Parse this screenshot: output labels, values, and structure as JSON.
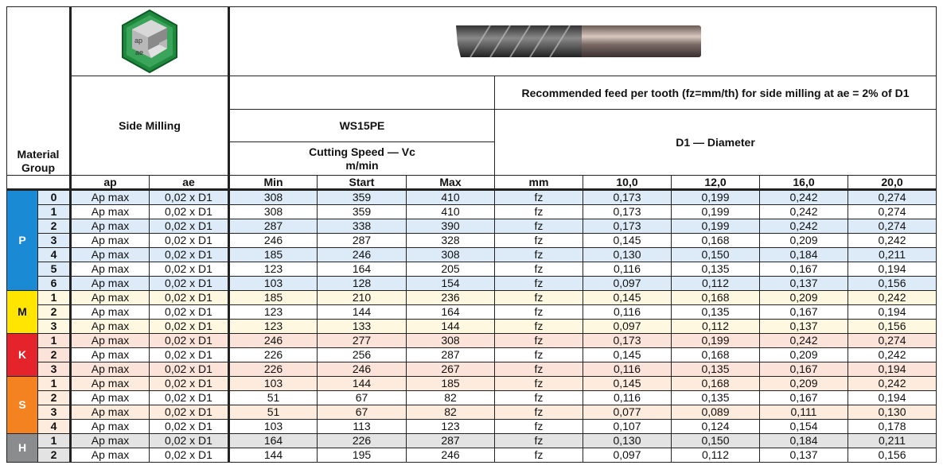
{
  "header": {
    "material_group": "Material Group",
    "operation": "Side Milling",
    "operation_icon_text": [
      "ap",
      "ae"
    ],
    "tool_name": "WS15PE",
    "cutting_speed": "Cutting Speed — Vc m/min",
    "feed_title": "Recommended feed per tooth (fz=mm/th) for side milling at ae = 2% of D1",
    "diameter_title": "D1 — Diameter",
    "columns": [
      "ap",
      "ae",
      "Min",
      "Start",
      "Max",
      "mm",
      "10,0",
      "12,0",
      "16,0",
      "20,0"
    ]
  },
  "groups": [
    {
      "letter": "P",
      "color": "#1a8ad4",
      "tint": "#ddebf8",
      "rows": [
        {
          "n": "0",
          "ap": "Ap max",
          "ae": "0,02 x D1",
          "min": "308",
          "start": "359",
          "max": "410",
          "mm": "fz",
          "fz": [
            "0,173",
            "0,199",
            "0,242",
            "0,274"
          ]
        },
        {
          "n": "1",
          "ap": "Ap max",
          "ae": "0,02 x D1",
          "min": "308",
          "start": "359",
          "max": "410",
          "mm": "fz",
          "fz": [
            "0,173",
            "0,199",
            "0,242",
            "0,274"
          ]
        },
        {
          "n": "2",
          "ap": "Ap max",
          "ae": "0,02 x D1",
          "min": "287",
          "start": "338",
          "max": "390",
          "mm": "fz",
          "fz": [
            "0,173",
            "0,199",
            "0,242",
            "0,274"
          ]
        },
        {
          "n": "3",
          "ap": "Ap max",
          "ae": "0,02 x D1",
          "min": "246",
          "start": "287",
          "max": "328",
          "mm": "fz",
          "fz": [
            "0,145",
            "0,168",
            "0,209",
            "0,242"
          ]
        },
        {
          "n": "4",
          "ap": "Ap max",
          "ae": "0,02 x D1",
          "min": "185",
          "start": "246",
          "max": "308",
          "mm": "fz",
          "fz": [
            "0,130",
            "0,150",
            "0,184",
            "0,211"
          ]
        },
        {
          "n": "5",
          "ap": "Ap max",
          "ae": "0,02 x D1",
          "min": "123",
          "start": "164",
          "max": "205",
          "mm": "fz",
          "fz": [
            "0,116",
            "0,135",
            "0,167",
            "0,194"
          ]
        },
        {
          "n": "6",
          "ap": "Ap max",
          "ae": "0,02 x D1",
          "min": "103",
          "start": "128",
          "max": "154",
          "mm": "fz",
          "fz": [
            "0,097",
            "0,112",
            "0,137",
            "0,156"
          ]
        }
      ]
    },
    {
      "letter": "M",
      "color": "#ffe500",
      "tint": "#fff8e1",
      "text_color": "#111",
      "rows": [
        {
          "n": "1",
          "ap": "Ap max",
          "ae": "0,02 x D1",
          "min": "185",
          "start": "210",
          "max": "236",
          "mm": "fz",
          "fz": [
            "0,145",
            "0,168",
            "0,209",
            "0,242"
          ]
        },
        {
          "n": "2",
          "ap": "Ap max",
          "ae": "0,02 x D1",
          "min": "123",
          "start": "144",
          "max": "164",
          "mm": "fz",
          "fz": [
            "0,116",
            "0,135",
            "0,167",
            "0,194"
          ]
        },
        {
          "n": "3",
          "ap": "Ap max",
          "ae": "0,02 x D1",
          "min": "123",
          "start": "133",
          "max": "144",
          "mm": "fz",
          "fz": [
            "0,097",
            "0,112",
            "0,137",
            "0,156"
          ]
        }
      ]
    },
    {
      "letter": "K",
      "color": "#e5232a",
      "tint": "#fce3da",
      "rows": [
        {
          "n": "1",
          "ap": "Ap max",
          "ae": "0,02 x D1",
          "min": "246",
          "start": "277",
          "max": "308",
          "mm": "fz",
          "fz": [
            "0,173",
            "0,199",
            "0,242",
            "0,274"
          ]
        },
        {
          "n": "2",
          "ap": "Ap max",
          "ae": "0,02 x D1",
          "min": "226",
          "start": "256",
          "max": "287",
          "mm": "fz",
          "fz": [
            "0,145",
            "0,168",
            "0,209",
            "0,242"
          ]
        },
        {
          "n": "3",
          "ap": "Ap max",
          "ae": "0,02 x D1",
          "min": "226",
          "start": "246",
          "max": "267",
          "mm": "fz",
          "fz": [
            "0,116",
            "0,135",
            "0,167",
            "0,194"
          ]
        }
      ]
    },
    {
      "letter": "S",
      "color": "#f58220",
      "tint": "#fdebdd",
      "rows": [
        {
          "n": "1",
          "ap": "Ap max",
          "ae": "0,02 x D1",
          "min": "103",
          "start": "144",
          "max": "185",
          "mm": "fz",
          "fz": [
            "0,145",
            "0,168",
            "0,209",
            "0,242"
          ]
        },
        {
          "n": "2",
          "ap": "Ap max",
          "ae": "0,02 x D1",
          "min": "51",
          "start": "67",
          "max": "82",
          "mm": "fz",
          "fz": [
            "0,116",
            "0,135",
            "0,167",
            "0,194"
          ]
        },
        {
          "n": "3",
          "ap": "Ap max",
          "ae": "0,02 x D1",
          "min": "51",
          "start": "67",
          "max": "82",
          "mm": "fz",
          "fz": [
            "0,077",
            "0,089",
            "0,111",
            "0,130"
          ]
        },
        {
          "n": "4",
          "ap": "Ap max",
          "ae": "0,02 x D1",
          "min": "103",
          "start": "113",
          "max": "123",
          "mm": "fz",
          "fz": [
            "0,107",
            "0,124",
            "0,154",
            "0,178"
          ]
        }
      ]
    },
    {
      "letter": "H",
      "color": "#8b8c8e",
      "tint": "#e3e3e3",
      "rows": [
        {
          "n": "1",
          "ap": "Ap max",
          "ae": "0,02 x D1",
          "min": "164",
          "start": "226",
          "max": "287",
          "mm": "fz",
          "fz": [
            "0,130",
            "0,150",
            "0,184",
            "0,211"
          ]
        },
        {
          "n": "2",
          "ap": "Ap max",
          "ae": "0,02 x D1",
          "min": "144",
          "start": "195",
          "max": "246",
          "mm": "fz",
          "fz": [
            "0,097",
            "0,112",
            "0,137",
            "0,156"
          ]
        }
      ]
    }
  ]
}
